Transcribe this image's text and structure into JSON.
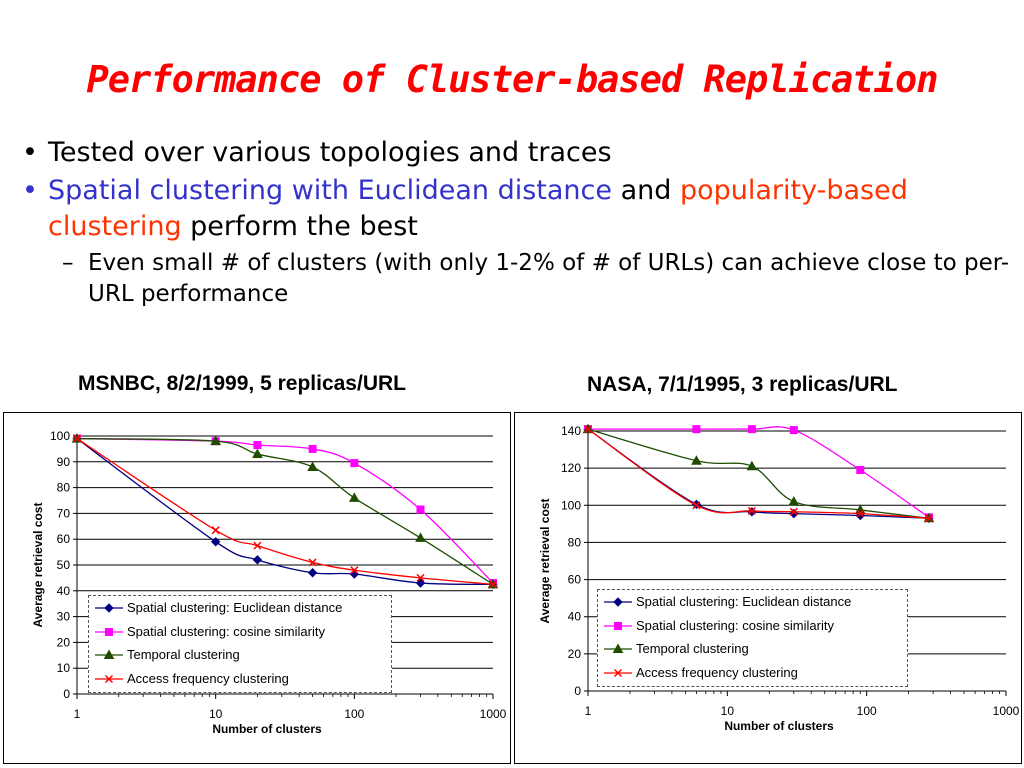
{
  "slide": {
    "title": "Performance of Cluster-based Replication",
    "bullet1": "Tested over various topologies and traces",
    "bullet2_part1": "Spatial clustering with Euclidean distance",
    "bullet2_part2": " and ",
    "bullet2_part3": "popularity-based clustering",
    "bullet2_part4": " perform the best",
    "subbullet": "Even small # of clusters (with only 1-2% of # of URLs) can achieve close to per-URL performance"
  },
  "colors": {
    "title": "#ff0000",
    "blue_text": "#3333cc",
    "red_text": "#ff3300",
    "series": [
      "#000080",
      "#ff00ff",
      "#1e4d00",
      "#ff0000"
    ]
  },
  "chart_data": [
    {
      "type": "line",
      "title": "MSNBC, 8/2/1999, 5 replicas/URL",
      "xlabel": "Number of clusters",
      "ylabel": "Average retrieval cost",
      "xscale": "log",
      "xlim": [
        1,
        1000
      ],
      "ylim": [
        0,
        100
      ],
      "x_ticks": [
        "1",
        "10",
        "100",
        "1000"
      ],
      "y_ticks": [
        "0",
        "10",
        "20",
        "30",
        "40",
        "50",
        "60",
        "70",
        "80",
        "90",
        "100"
      ],
      "grid": "horizontal",
      "legend_position": "lower-left",
      "series": [
        {
          "name": "Spatial clustering: Euclidean distance",
          "marker": "diamond",
          "x": [
            1,
            10,
            20,
            50,
            100,
            300,
            1000
          ],
          "y": [
            99,
            59,
            52,
            47,
            46.5,
            43,
            42.5
          ]
        },
        {
          "name": "Spatial clustering: cosine similarity",
          "marker": "square",
          "x": [
            1,
            10,
            20,
            50,
            100,
            300,
            1000
          ],
          "y": [
            99,
            98,
            96.5,
            95,
            89.5,
            71.5,
            43
          ]
        },
        {
          "name": "Temporal clustering",
          "marker": "triangle",
          "x": [
            1,
            10,
            20,
            50,
            100,
            300,
            1000
          ],
          "y": [
            99,
            98,
            93,
            88,
            76,
            60.5,
            42.5
          ]
        },
        {
          "name": "Access frequency clustering",
          "marker": "x",
          "x": [
            1,
            10,
            20,
            50,
            100,
            300,
            1000
          ],
          "y": [
            99,
            63.5,
            57.5,
            51,
            48,
            45,
            42.5
          ]
        }
      ]
    },
    {
      "type": "line",
      "title": "NASA, 7/1/1995, 3 replicas/URL",
      "xlabel": "Number of clusters",
      "ylabel": "Average retrieval cost",
      "xscale": "log",
      "xlim": [
        1,
        1000
      ],
      "ylim": [
        0,
        140
      ],
      "x_ticks": [
        "1",
        "10",
        "100",
        "1000"
      ],
      "y_ticks": [
        "0",
        "20",
        "40",
        "60",
        "80",
        "100",
        "120",
        "140"
      ],
      "grid": "horizontal",
      "legend_position": "lower-left",
      "series": [
        {
          "name": "Spatial clustering: Euclidean distance",
          "marker": "diamond",
          "x": [
            1,
            6,
            15,
            30,
            90,
            280
          ],
          "y": [
            141,
            100.5,
            96.5,
            95.5,
            94.5,
            93
          ]
        },
        {
          "name": "Spatial clustering: cosine similarity",
          "marker": "square",
          "x": [
            1,
            6,
            15,
            30,
            90,
            280
          ],
          "y": [
            141,
            141,
            141,
            140.5,
            119,
            93.5
          ]
        },
        {
          "name": "Temporal clustering",
          "marker": "triangle",
          "x": [
            1,
            6,
            15,
            30,
            90,
            280
          ],
          "y": [
            141,
            124,
            121,
            102,
            97.5,
            93
          ]
        },
        {
          "name": "Access frequency clustering",
          "marker": "x",
          "x": [
            1,
            6,
            15,
            30,
            90,
            280
          ],
          "y": [
            141,
            100,
            97,
            96.5,
            95.5,
            93
          ]
        }
      ]
    }
  ]
}
